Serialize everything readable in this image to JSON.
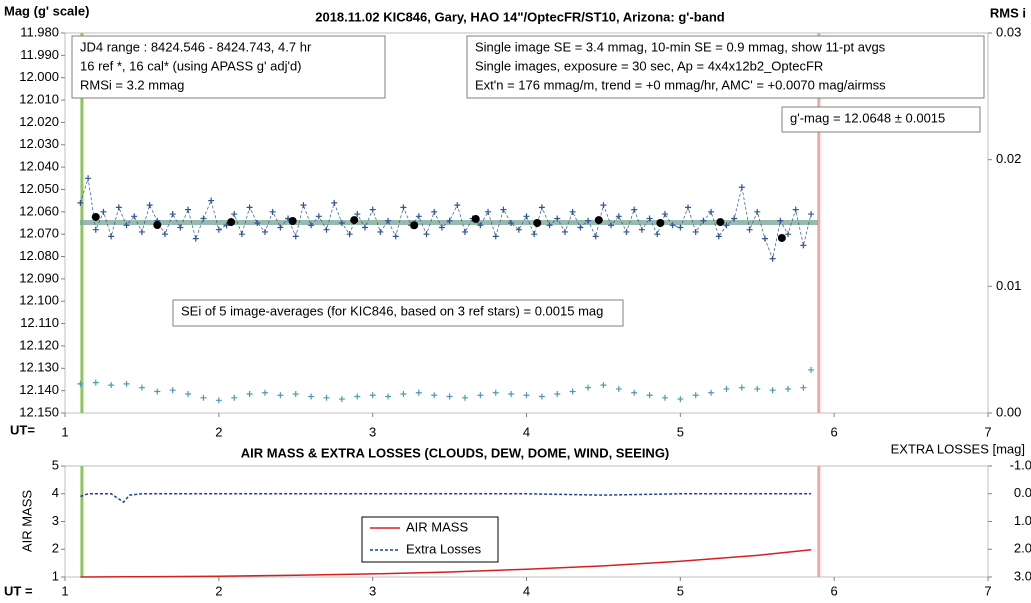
{
  "chart_data": [
    {
      "type": "scatter",
      "title": "2018.11.02 KIC846, Gary, HAO 14\"/OptecFR/ST10, Arizona: g'-band",
      "ylabel": "Mag (g' scale)",
      "y2label": "RMS i",
      "xlabel": "UT=",
      "xlim": [
        1,
        7
      ],
      "xticks": [
        1,
        2,
        3,
        4,
        5,
        6,
        7
      ],
      "ylim": [
        12.15,
        11.98
      ],
      "yticks": [
        {
          "value": 11.98,
          "label": "11.980"
        },
        {
          "value": 11.99,
          "label": "11.990"
        },
        {
          "value": 12.0,
          "label": "12.000"
        },
        {
          "value": 12.01,
          "label": "12.010"
        },
        {
          "value": 12.02,
          "label": "12.020"
        },
        {
          "value": 12.03,
          "label": "12.030"
        },
        {
          "value": 12.04,
          "label": "12.040"
        },
        {
          "value": 12.05,
          "label": "12.050"
        },
        {
          "value": 12.06,
          "label": "12.060"
        },
        {
          "value": 12.07,
          "label": "12.070"
        },
        {
          "value": 12.08,
          "label": "12.080"
        },
        {
          "value": 12.09,
          "label": "12.090"
        },
        {
          "value": 12.1,
          "label": "12.100"
        },
        {
          "value": 12.11,
          "label": "12.110"
        },
        {
          "value": 12.12,
          "label": "12.120"
        },
        {
          "value": 12.13,
          "label": "12.130"
        },
        {
          "value": 12.14,
          "label": "12.140"
        },
        {
          "value": 12.15,
          "label": "12.150"
        }
      ],
      "y2lim": [
        0,
        0.03
      ],
      "y2ticks": [
        {
          "value": 0,
          "label": "0.00"
        },
        {
          "value": 0.01,
          "label": "0.01"
        },
        {
          "value": 0.02,
          "label": "0.02"
        },
        {
          "value": 0.03,
          "label": "0.03"
        }
      ],
      "reference_line": {
        "value": 12.0648,
        "color": "#7fa89a"
      },
      "vlines": [
        {
          "x": 1.11,
          "color": "#8cc65a"
        },
        {
          "x": 5.9,
          "color": "#f4a6a6"
        }
      ],
      "annotations": [
        [
          "JD4 range : 8424.546 - 8424.743,  4.7  hr",
          "16 ref *, 16 cal* (using APASS g' adj'd)",
          "RMSi = 3.2 mmag"
        ],
        [
          "Single image SE = 3.4 mmag, 10-min SE = 0.9 mmag, show  11-pt avgs",
          "Single images, exposure = 30 sec, Ap = 4x4x12b2_OptecFR",
          "Ext'n = 176 mmag/m, trend =  +0 mmag/hr, AMC' = +0.0070 mag/airmss"
        ],
        [
          "g'-mag = 12.0648 ± 0.0015"
        ],
        [
          "SEi of 5 image-averages (for KIC846, based on 3 ref stars) = 0.0015 mag"
        ]
      ],
      "series": [
        {
          "color": "#2f5597",
          "marker": "plus",
          "dashed": true,
          "x": [
            1.1,
            1.15,
            1.2,
            1.25,
            1.3,
            1.35,
            1.4,
            1.45,
            1.5,
            1.55,
            1.6,
            1.65,
            1.7,
            1.75,
            1.8,
            1.85,
            1.9,
            1.95,
            2.0,
            2.05,
            2.1,
            2.15,
            2.2,
            2.25,
            2.3,
            2.35,
            2.4,
            2.45,
            2.5,
            2.55,
            2.6,
            2.65,
            2.7,
            2.75,
            2.8,
            2.85,
            2.9,
            2.95,
            3.0,
            3.05,
            3.1,
            3.15,
            3.2,
            3.25,
            3.3,
            3.35,
            3.4,
            3.45,
            3.5,
            3.55,
            3.6,
            3.65,
            3.7,
            3.75,
            3.8,
            3.85,
            3.9,
            3.95,
            4.0,
            4.05,
            4.1,
            4.15,
            4.2,
            4.25,
            4.3,
            4.35,
            4.4,
            4.45,
            4.5,
            4.55,
            4.6,
            4.65,
            4.7,
            4.75,
            4.8,
            4.85,
            4.9,
            4.95,
            5.0,
            5.05,
            5.1,
            5.15,
            5.2,
            5.25,
            5.3,
            5.35,
            5.4,
            5.45,
            5.5,
            5.55,
            5.6,
            5.65,
            5.7,
            5.75,
            5.8,
            5.85
          ],
          "values": [
            12.056,
            12.045,
            12.068,
            12.06,
            12.071,
            12.058,
            12.066,
            12.062,
            12.069,
            12.057,
            12.064,
            12.07,
            12.061,
            12.067,
            12.059,
            12.072,
            12.063,
            12.055,
            12.068,
            12.066,
            12.061,
            12.07,
            12.058,
            12.065,
            12.069,
            12.06,
            12.067,
            12.063,
            12.071,
            12.057,
            12.066,
            12.062,
            12.068,
            12.056,
            12.065,
            12.07,
            12.061,
            12.067,
            12.059,
            12.069,
            12.064,
            12.071,
            12.058,
            12.066,
            12.062,
            12.07,
            12.06,
            12.067,
            12.064,
            12.057,
            12.069,
            12.063,
            12.066,
            12.06,
            12.071,
            12.059,
            12.065,
            12.068,
            12.062,
            12.07,
            12.058,
            12.066,
            12.063,
            12.069,
            12.06,
            12.067,
            12.064,
            12.071,
            12.057,
            12.066,
            12.062,
            12.069,
            12.059,
            12.068,
            12.063,
            12.07,
            12.061,
            12.066,
            12.067,
            12.058,
            12.069,
            12.064,
            12.06,
            12.071,
            12.066,
            12.063,
            12.049,
            12.068,
            12.06,
            12.072,
            12.081,
            12.064,
            12.07,
            12.059,
            12.075,
            12.061
          ]
        },
        {
          "color": "#000000",
          "marker": "dot",
          "x": [
            1.2,
            1.6,
            2.08,
            2.48,
            2.88,
            3.27,
            3.67,
            4.07,
            4.47,
            4.87,
            5.26,
            5.66
          ],
          "values": [
            12.0623,
            12.0659,
            12.0646,
            12.0641,
            12.0637,
            12.066,
            12.0632,
            12.065,
            12.0637,
            12.065,
            12.0646,
            12.0717
          ]
        },
        {
          "color": "#4a9bb0",
          "marker": "plus",
          "axis": "y2",
          "x": [
            1.1,
            1.2,
            1.3,
            1.4,
            1.5,
            1.6,
            1.7,
            1.8,
            1.9,
            2.0,
            2.1,
            2.2,
            2.3,
            2.4,
            2.5,
            2.6,
            2.7,
            2.8,
            2.9,
            3.0,
            3.1,
            3.2,
            3.3,
            3.4,
            3.5,
            3.6,
            3.7,
            3.8,
            3.9,
            4.0,
            4.1,
            4.2,
            4.3,
            4.4,
            4.5,
            4.6,
            4.7,
            4.8,
            4.9,
            5.0,
            5.1,
            5.2,
            5.3,
            5.4,
            5.5,
            5.6,
            5.7,
            5.8,
            5.85
          ],
          "values": [
            0.0023,
            0.0024,
            0.0022,
            0.0023,
            0.002,
            0.0017,
            0.0018,
            0.0015,
            0.0012,
            0.001,
            0.0012,
            0.0015,
            0.0016,
            0.0014,
            0.0015,
            0.0013,
            0.0012,
            0.0011,
            0.0013,
            0.0014,
            0.0013,
            0.0015,
            0.0016,
            0.0014,
            0.0013,
            0.0012,
            0.0014,
            0.0016,
            0.0015,
            0.0014,
            0.0013,
            0.0015,
            0.0017,
            0.002,
            0.0022,
            0.0019,
            0.0016,
            0.0014,
            0.0012,
            0.0011,
            0.0014,
            0.0016,
            0.0019,
            0.002,
            0.0019,
            0.0018,
            0.0019,
            0.002,
            0.0034
          ]
        }
      ]
    },
    {
      "type": "line",
      "title": "AIR MASS & EXTRA LOSSES (CLOUDS, DEW, DOME, WIND, SEEING)",
      "ylabel": "AIR MASS",
      "y2label": "EXTRA LOSSES [mag]",
      "xlabel": "UT =",
      "xlim": [
        1,
        7
      ],
      "xticks": [
        1,
        2,
        3,
        4,
        5,
        6,
        7
      ],
      "ylim": [
        1,
        5
      ],
      "yticks": [
        1,
        2,
        3,
        4,
        5
      ],
      "y2lim": [
        3.0,
        -1.0
      ],
      "y2ticks": [
        {
          "value": -1.0,
          "label": "-1.0"
        },
        {
          "value": 0.0,
          "label": "0.0"
        },
        {
          "value": 1.0,
          "label": "1.0"
        },
        {
          "value": 2.0,
          "label": "2.0"
        },
        {
          "value": 3.0,
          "label": "3.0"
        }
      ],
      "vlines": [
        {
          "x": 1.11,
          "color": "#8cc65a"
        },
        {
          "x": 5.9,
          "color": "#f4a6a6"
        }
      ],
      "series": [
        {
          "name": "AIR MASS",
          "color": "#d62020",
          "x": [
            1.1,
            1.5,
            2.0,
            2.5,
            3.0,
            3.5,
            4.0,
            4.5,
            5.0,
            5.5,
            5.85
          ],
          "values": [
            1.0,
            1.01,
            1.03,
            1.06,
            1.11,
            1.18,
            1.28,
            1.4,
            1.57,
            1.78,
            1.98
          ]
        },
        {
          "name": "Extra Losses",
          "color": "#1f3fa0",
          "dashed": true,
          "axis": "y2",
          "x": [
            1.1,
            1.15,
            1.3,
            1.38,
            1.42,
            1.5,
            2.0,
            3.0,
            4.0,
            4.5,
            5.0,
            5.5,
            5.85
          ],
          "values": [
            0.1,
            0.0,
            0.0,
            0.3,
            0.05,
            0.0,
            0.0,
            0.0,
            0.0,
            0.05,
            0.0,
            0.0,
            0.0
          ]
        }
      ]
    }
  ]
}
